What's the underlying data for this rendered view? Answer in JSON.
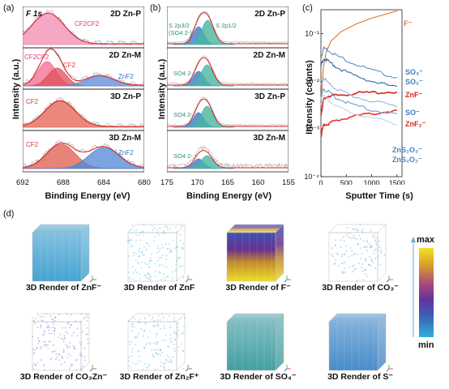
{
  "panels": {
    "a": {
      "label": "(a)",
      "element": "F 1s",
      "ylabel": "Intensity (a.u.)",
      "xlabel": "Binding Energy (eV)",
      "xticks": [
        "692",
        "688",
        "684",
        "680"
      ],
      "xlim": [
        692,
        680
      ],
      "rows": [
        {
          "name": "2D Zn-P",
          "peaks": [
            "CF2CF2"
          ]
        },
        {
          "name": "2D Zn-M",
          "peaks": [
            "CF2CF2",
            "CF2",
            "ZnF2"
          ]
        },
        {
          "name": "3D Zn-P",
          "peaks": [
            "CF2"
          ]
        },
        {
          "name": "3D Zn-M",
          "peaks": [
            "CF2",
            "ZnF2"
          ]
        }
      ],
      "peak_positions_eV": {
        "CF2CF2": 689.5,
        "CF2": 688.5,
        "ZnF2": 684.3
      }
    },
    "b": {
      "label": "(b)",
      "ylabel": "Intensity (a.u.)",
      "xlabel": "Binding Energy (eV)",
      "xticks": [
        "175",
        "170",
        "165",
        "160",
        "155"
      ],
      "xlim": [
        175,
        155
      ],
      "rows": [
        {
          "name": "2D Zn-P",
          "labels": [
            "S 2p3/2",
            "(SO4 2-)",
            "S 2p1/2"
          ]
        },
        {
          "name": "2D Zn-M",
          "labels": [
            "SO4 2-"
          ]
        },
        {
          "name": "3D Zn-P",
          "labels": [
            "SO4 2-"
          ]
        },
        {
          "name": "3D Zn-M",
          "labels": [
            "SO4 2-"
          ]
        }
      ],
      "peak_positions_eV": {
        "S2p3/2": 169.5,
        "S2p1/2": 168.3
      }
    },
    "c": {
      "label": "(c)",
      "ylabel": "Intensity (counts)",
      "xlabel": "Sputter Time (s)",
      "xticks": [
        "0",
        "500",
        "1000",
        "1500"
      ],
      "yticks": [
        "10⁻⁴",
        "10⁻³",
        "10⁻²",
        "10⁻¹"
      ]
    },
    "d": {
      "label": "(d)",
      "colorbar": {
        "max": "max",
        "min": "min"
      },
      "renders": [
        {
          "title": "3D Render of ZnF⁻",
          "color": "#3d9ed0"
        },
        {
          "title": "3D Render of ZnF",
          "color": "#5bc6e6"
        },
        {
          "title": "3D Render of F⁻",
          "color": "#e0cc2a"
        },
        {
          "title": "3D Render of CO₃⁻",
          "color": "#6aa5e0"
        },
        {
          "title": "3D Render of CO₃Zn⁻",
          "color": "#8a86d4"
        },
        {
          "title": "3D Render of Zn₂F⁺",
          "color": "#6cbfe4"
        },
        {
          "title": "3D Render of SO₄⁻",
          "color": "#3a9a9e"
        },
        {
          "title": "3D Render of S⁻",
          "color": "#3f86c8"
        }
      ]
    }
  },
  "chart_data": [
    {
      "type": "line",
      "title": "",
      "xlabel": "Binding Energy (eV)",
      "ylabel": "Intensity (a.u.)",
      "xlim": [
        692,
        680
      ],
      "series": [
        {
          "name": "2D Zn-P",
          "components": [
            {
              "label": "CF2CF2",
              "center": 689.5
            }
          ]
        },
        {
          "name": "2D Zn-M",
          "components": [
            {
              "label": "CF2CF2",
              "center": 689.6
            },
            {
              "label": "CF2",
              "center": 688.6
            },
            {
              "label": "ZnF2",
              "center": 684.4
            }
          ]
        },
        {
          "name": "3D Zn-P",
          "components": [
            {
              "label": "CF2",
              "center": 688.3
            }
          ]
        },
        {
          "name": "3D Zn-M",
          "components": [
            {
              "label": "CF2",
              "center": 688.2
            },
            {
              "label": "ZnF2",
              "center": 684.0
            }
          ]
        }
      ]
    },
    {
      "type": "line",
      "title": "",
      "xlabel": "Binding Energy (eV)",
      "ylabel": "Intensity (a.u.)",
      "xlim": [
        175,
        155
      ],
      "series": [
        {
          "name": "2D Zn-P",
          "components": [
            {
              "label": "S 2p3/2",
              "center": 169.8
            },
            {
              "label": "S 2p1/2",
              "center": 168.4
            }
          ]
        },
        {
          "name": "2D Zn-M",
          "components": [
            {
              "label": "SO4 2-",
              "center": 169.5
            }
          ]
        },
        {
          "name": "3D Zn-P",
          "components": [
            {
              "label": "SO4 2-",
              "center": 169.5
            }
          ]
        },
        {
          "name": "3D Zn-M",
          "components": [
            {
              "label": "SO4 2-",
              "center": 169.5
            }
          ]
        }
      ]
    },
    {
      "type": "line",
      "title": "",
      "xlabel": "Sputter Time (s)",
      "ylabel": "Intensity (counts)",
      "xlim": [
        0,
        1600
      ],
      "ylim_log10": [
        -4,
        -0.5
      ],
      "series": [
        {
          "name": "F⁻",
          "color": "#e8742a",
          "x": [
            0,
            50,
            100,
            200,
            400,
            700,
            1000,
            1300,
            1500
          ],
          "y": [
            0.004,
            0.02,
            0.04,
            0.07,
            0.11,
            0.16,
            0.21,
            0.26,
            0.3
          ]
        },
        {
          "name": "SO₃⁻",
          "color": "#5b8fc7",
          "x": [
            0,
            50,
            150,
            300,
            600,
            1000,
            1500
          ],
          "y": [
            0.03,
            0.05,
            0.045,
            0.035,
            0.025,
            0.017,
            0.012
          ]
        },
        {
          "name": "SO₂⁻",
          "color": "#2b6aa8",
          "x": [
            0,
            50,
            150,
            300,
            600,
            1000,
            1500
          ],
          "y": [
            0.02,
            0.03,
            0.026,
            0.02,
            0.014,
            0.01,
            0.0075
          ]
        },
        {
          "name": "ZnF⁻",
          "color": "#d7261e",
          "x": [
            0,
            50,
            150,
            300,
            600,
            1000,
            1500
          ],
          "y": [
            0.002,
            0.004,
            0.005,
            0.005,
            0.0055,
            0.0058,
            0.006
          ]
        },
        {
          "name": "SO⁻",
          "color": "#8fb8de",
          "x": [
            0,
            50,
            150,
            300,
            600,
            1000,
            1500
          ],
          "y": [
            0.008,
            0.012,
            0.009,
            0.007,
            0.005,
            0.0038,
            0.003
          ]
        },
        {
          "name": "ZnF₂⁻",
          "color": "#e9372e",
          "x": [
            0,
            50,
            150,
            300,
            600,
            1000,
            1500
          ],
          "y": [
            0.0007,
            0.0012,
            0.0013,
            0.0015,
            0.0018,
            0.0021,
            0.0024
          ]
        },
        {
          "name": "ZnS₂O₃⁻",
          "color": "#bcd6ec",
          "x": [
            0,
            50,
            150,
            300,
            600,
            1000,
            1500
          ],
          "y": [
            0.003,
            0.005,
            0.004,
            0.003,
            0.0022,
            0.0017,
            0.0013
          ]
        },
        {
          "name": "ZnS₂O₂⁻",
          "color": "#6fa0d2",
          "x": [
            0,
            50,
            150,
            300,
            600,
            1000,
            1500
          ],
          "y": [
            0.004,
            0.007,
            0.006,
            0.0045,
            0.0033,
            0.0025,
            0.002
          ]
        }
      ]
    }
  ]
}
